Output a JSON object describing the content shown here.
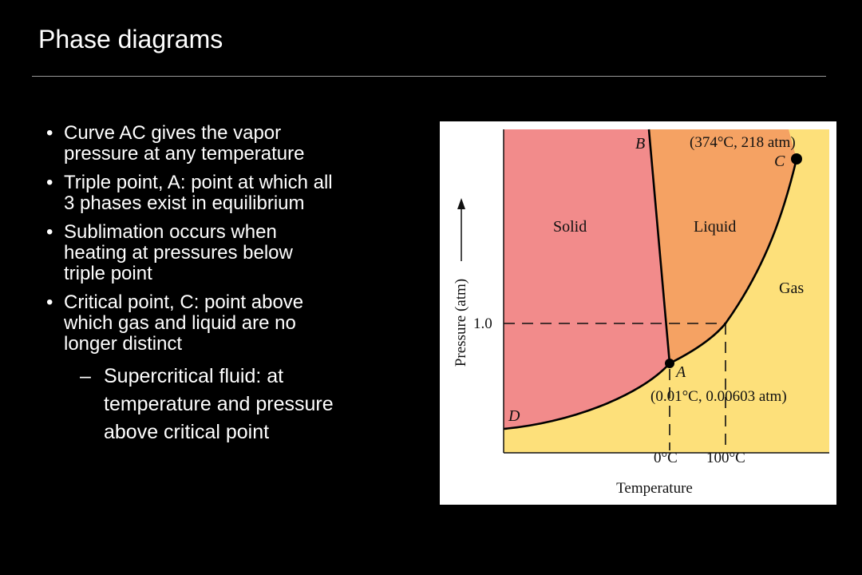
{
  "slide": {
    "title": "Phase diagrams"
  },
  "bullets": [
    {
      "lines": [
        "Curve AC gives the vapor",
        "pressure at any temperature"
      ]
    },
    {
      "lines": [
        "Triple point, A: point at which all",
        "3 phases exist in equilibrium"
      ]
    },
    {
      "lines": [
        "Sublimation occurs when",
        "heating at pressures below",
        "triple point"
      ]
    },
    {
      "lines": [
        "Critical point, C: point above",
        "which gas and liquid are no",
        "longer distinct"
      ]
    }
  ],
  "sub_bullet": {
    "lines": [
      "Supercritical fluid: at",
      "temperature and pressure",
      "above critical point"
    ]
  },
  "diagram": {
    "regions": {
      "solid": "Solid",
      "liquid": "Liquid",
      "gas": "Gas"
    },
    "points": {
      "B": "B",
      "C": "C",
      "A": "A",
      "D": "D"
    },
    "critical_label": "(374°C, 218 atm)",
    "triple_label": "(0.01°C, 0.00603 atm)",
    "y_axis_label": "Pressure (atm)",
    "x_axis_label": "Temperature",
    "y_tick": "1.0",
    "x_ticks": [
      "0°C",
      "100°C"
    ],
    "colors": {
      "solid": "#f28b8b",
      "liquid": "#f5a263",
      "gas": "#fde07a",
      "curve": "#000000"
    }
  }
}
